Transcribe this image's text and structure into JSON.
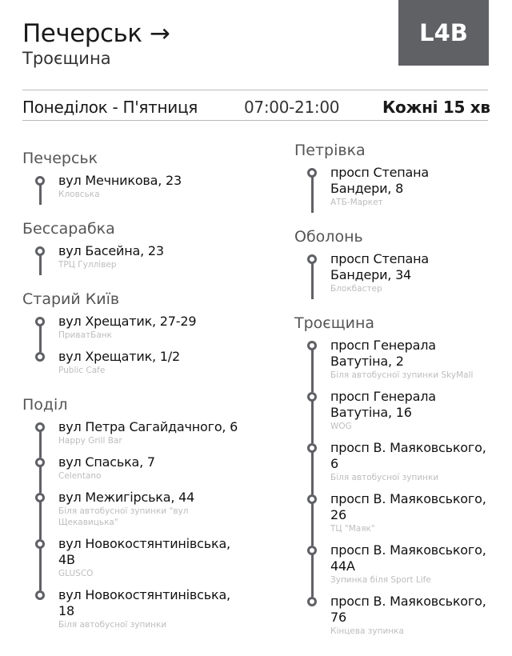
{
  "header": {
    "from": "Печерськ →",
    "to": "Троєщина",
    "route": "L4B"
  },
  "schedule": {
    "days": "Понеділок - П'ятниця",
    "hours": "07:00-21:00",
    "interval": "Кожні 15 хв"
  },
  "colors": {
    "accent": "#5f6165"
  },
  "left": [
    {
      "name": "Печерськ",
      "stops": [
        {
          "t": "вул Мечникова, 23",
          "s": "Кловська"
        }
      ]
    },
    {
      "name": "Бессарабка",
      "stops": [
        {
          "t": "вул Басейна, 23",
          "s": "ТРЦ Гуллівер"
        }
      ]
    },
    {
      "name": "Старий Київ",
      "stops": [
        {
          "t": "вул Хрещатик, 27-29",
          "s": "ПриватБанк"
        },
        {
          "t": "вул Хрещатик, 1/2",
          "s": "Public Cafe"
        }
      ]
    },
    {
      "name": "Поділ",
      "stops": [
        {
          "t": "вул Петра Сагайдачного, 6",
          "s": "Happy Grill Bar"
        },
        {
          "t": "вул Спаська, 7",
          "s": "Celentano"
        },
        {
          "t": "вул Межигірська, 44",
          "s": "Біля автобусної зупинки \"вул Щекавицька\""
        },
        {
          "t": "вул Новокостянтинівська, 4В",
          "s": "GLUSCO"
        },
        {
          "t": "вул Новокостянтинівська, 18",
          "s": "Біля автобусної зупинки"
        }
      ]
    }
  ],
  "right": [
    {
      "name": "Петрівка",
      "stops": [
        {
          "t": "просп Степана Бандери, 8",
          "s": "АТБ-Маркет"
        }
      ]
    },
    {
      "name": "Оболонь",
      "stops": [
        {
          "t": "просп Степана Бандери, 34",
          "s": "Блокбастер"
        }
      ]
    },
    {
      "name": "Троєщина",
      "stops": [
        {
          "t": "просп Генерала Ватутіна, 2",
          "s": "Біля автобусної зупинки SkyMall"
        },
        {
          "t": "просп Генерала Ватутіна, 16",
          "s": "WOG"
        },
        {
          "t": "просп В. Маяковського, 6",
          "s": "Біля автобусної зупинки"
        },
        {
          "t": "просп В. Маяковського, 26",
          "s": "ТЦ \"Маяк\""
        },
        {
          "t": "просп В. Маяковського, 44А",
          "s": "Зупинка біля Sport Life"
        },
        {
          "t": "просп В. Маяковського, 76",
          "s": "Кінцева зупинка"
        }
      ]
    }
  ]
}
